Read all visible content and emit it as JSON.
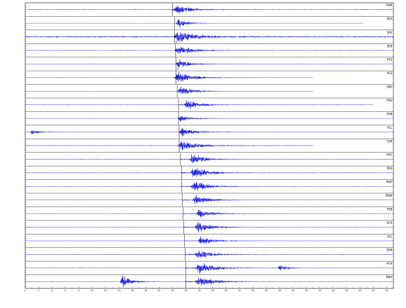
{
  "chart_data": {
    "type": "line",
    "title": "",
    "xlabel": "",
    "ylabel": "",
    "grid": false,
    "line_color": "#1010e0",
    "frame_color": "#000000",
    "xlim": [
      0,
      55
    ],
    "x_tick_step": 1,
    "x_tick_labels": [
      "0",
      "2",
      "4",
      "6",
      "8",
      "10",
      "12",
      "14",
      "16",
      "18",
      "20",
      "22",
      "24",
      "26",
      "28",
      "30",
      "32",
      "34",
      "36",
      "38",
      "40",
      "42",
      "44",
      "46",
      "48",
      "50",
      "52",
      "54"
    ],
    "x_tick_label_step": 2,
    "traces": [
      {
        "station": "PWR",
        "onset": 22.0,
        "end": 55.0,
        "amp": 0.45,
        "pick": "",
        "events": [
          [
            22.6,
            1.0,
            1.2
          ]
        ]
      },
      {
        "station": "PDS",
        "onset": 22.3,
        "end": 50.5,
        "amp": 0.15,
        "pick": "",
        "events": [
          [
            22.9,
            0.8,
            1.0
          ]
        ]
      },
      {
        "station": "SRV",
        "onset": 22.3,
        "end": 55.0,
        "amp": 0.9,
        "pick": "P",
        "events": [
          [
            22.8,
            0.9,
            1.8
          ]
        ]
      },
      {
        "station": "SEB",
        "onset": 22.4,
        "end": 55.0,
        "amp": 0.35,
        "pick": "",
        "events": [
          [
            22.9,
            0.8,
            1.6
          ]
        ]
      },
      {
        "station": "PYD",
        "onset": 22.5,
        "end": 55.0,
        "amp": 0.3,
        "pick": "P",
        "events": [
          [
            22.9,
            0.8,
            1.2
          ]
        ]
      },
      {
        "station": "PLD",
        "onset": 22.5,
        "end": 43.0,
        "amp": 0.3,
        "pick": "",
        "events": [
          [
            22.8,
            0.9,
            1.8
          ]
        ]
      },
      {
        "station": "SBD",
        "onset": 22.7,
        "end": 43.0,
        "amp": 0.12,
        "pick": "",
        "events": [
          [
            23.2,
            0.8,
            1.6
          ]
        ]
      },
      {
        "station": "PRH",
        "onset": 22.9,
        "end": 52.0,
        "amp": 0.35,
        "pick": "",
        "events": [
          [
            24.2,
            0.8,
            1.4
          ]
        ]
      },
      {
        "station": "PVN",
        "onset": 22.9,
        "end": 55.0,
        "amp": 0.2,
        "pick": "",
        "events": [
          [
            23.2,
            0.6,
            1.2
          ]
        ]
      },
      {
        "station": "PCL",
        "onset": 23.0,
        "end": 55.0,
        "amp": 0.25,
        "pick": "",
        "events": [
          [
            23.4,
            0.7,
            1.4
          ],
          [
            1.0,
            0.5,
            0.8
          ]
        ]
      },
      {
        "station": "TDR",
        "onset": 23.0,
        "end": 43.0,
        "amp": 0.4,
        "pick": "",
        "events": [
          [
            23.4,
            0.9,
            1.8
          ]
        ]
      },
      {
        "station": "PDC",
        "onset": 23.2,
        "end": 55.0,
        "amp": 0.35,
        "pick": "",
        "events": [
          [
            25.0,
            0.9,
            1.4
          ]
        ]
      },
      {
        "station": "PDS",
        "onset": 23.4,
        "end": 55.0,
        "amp": 0.4,
        "pick": "",
        "events": [
          [
            25.2,
            1.0,
            1.6
          ]
        ]
      },
      {
        "station": "PWP",
        "onset": 23.4,
        "end": 55.0,
        "amp": 0.35,
        "pick": "",
        "events": [
          [
            25.3,
            0.9,
            1.6
          ]
        ]
      },
      {
        "station": "PWM",
        "onset": 23.5,
        "end": 55.0,
        "amp": 0.3,
        "pick": "",
        "events": [
          [
            25.5,
            0.8,
            1.6
          ]
        ]
      },
      {
        "station": "PSB",
        "onset": 23.6,
        "end": 55.0,
        "amp": 0.3,
        "pick": "",
        "events": [
          [
            26.0,
            0.8,
            1.4
          ]
        ]
      },
      {
        "station": "PCR",
        "onset": 23.7,
        "end": 55.0,
        "amp": 0.3,
        "pick": "",
        "events": [
          [
            25.8,
            0.9,
            1.6
          ]
        ]
      },
      {
        "station": "SCL",
        "onset": 23.8,
        "end": 55.0,
        "amp": 0.25,
        "pick": "",
        "events": [
          [
            26.2,
            0.8,
            1.4
          ]
        ]
      },
      {
        "station": "SDN",
        "onset": 23.9,
        "end": 55.0,
        "amp": 0.35,
        "pick": "",
        "events": [
          [
            25.8,
            0.8,
            1.6
          ]
        ]
      },
      {
        "station": "PCH",
        "onset": 24.0,
        "end": 55.0,
        "amp": 0.35,
        "pick": "",
        "events": [
          [
            26.0,
            1.0,
            1.8
          ],
          [
            38.0,
            0.6,
            0.8
          ]
        ]
      },
      {
        "station": "PMH",
        "onset": 24.0,
        "end": 55.0,
        "amp": 0.3,
        "pick": "",
        "events": [
          [
            26.0,
            1.0,
            1.8
          ],
          [
            14.5,
            1.2,
            1.0
          ]
        ]
      }
    ]
  }
}
